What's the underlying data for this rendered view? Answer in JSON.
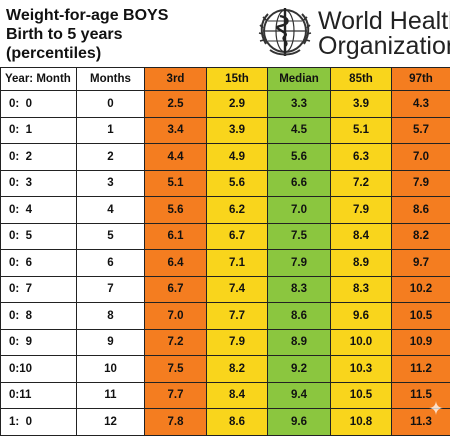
{
  "title": {
    "line1": "Weight-for-age  BOYS",
    "line2": "Birth to 5 years",
    "line3": "(percentiles)"
  },
  "logo": {
    "icon": "who-emblem-icon",
    "text_line1": "World Health",
    "text_line2": "Organization"
  },
  "colors": {
    "extreme": "#f47d20",
    "mid": "#f9d51c",
    "median": "#8bc63f"
  },
  "columns": [
    "Year: Month",
    "Months",
    "3rd",
    "15th",
    "Median",
    "85th",
    "97th"
  ],
  "rows": [
    {
      "age": "0:  0",
      "months": "0",
      "p3": "2.5",
      "p15": "2.9",
      "median": "3.3",
      "p85": "3.9",
      "p97": "4.3"
    },
    {
      "age": "0:  1",
      "months": "1",
      "p3": "3.4",
      "p15": "3.9",
      "median": "4.5",
      "p85": "5.1",
      "p97": "5.7"
    },
    {
      "age": "0:  2",
      "months": "2",
      "p3": "4.4",
      "p15": "4.9",
      "median": "5.6",
      "p85": "6.3",
      "p97": "7.0"
    },
    {
      "age": "0:  3",
      "months": "3",
      "p3": "5.1",
      "p15": "5.6",
      "median": "6.6",
      "p85": "7.2",
      "p97": "7.9"
    },
    {
      "age": "0:  4",
      "months": "4",
      "p3": "5.6",
      "p15": "6.2",
      "median": "7.0",
      "p85": "7.9",
      "p97": "8.6"
    },
    {
      "age": "0:  5",
      "months": "5",
      "p3": "6.1",
      "p15": "6.7",
      "median": "7.5",
      "p85": "8.4",
      "p97": "8.2"
    },
    {
      "age": "0:  6",
      "months": "6",
      "p3": "6.4",
      "p15": "7.1",
      "median": "7.9",
      "p85": "8.9",
      "p97": "9.7"
    },
    {
      "age": "0:  7",
      "months": "7",
      "p3": "6.7",
      "p15": "7.4",
      "median": "8.3",
      "p85": "8.3",
      "p97": "10.2"
    },
    {
      "age": "0:  8",
      "months": "8",
      "p3": "7.0",
      "p15": "7.7",
      "median": "8.6",
      "p85": "9.6",
      "p97": "10.5"
    },
    {
      "age": "0:  9",
      "months": "9",
      "p3": "7.2",
      "p15": "7.9",
      "median": "8.9",
      "p85": "10.0",
      "p97": "10.9"
    },
    {
      "age": "0:10",
      "months": "10",
      "p3": "7.5",
      "p15": "8.2",
      "median": "9.2",
      "p85": "10.3",
      "p97": "11.2"
    },
    {
      "age": "0:11",
      "months": "11",
      "p3": "7.7",
      "p15": "8.4",
      "median": "9.4",
      "p85": "10.5",
      "p97": "11.5"
    },
    {
      "age": "1:  0",
      "months": "12",
      "p3": "7.8",
      "p15": "8.6",
      "median": "9.6",
      "p85": "10.8",
      "p97": "11.3"
    }
  ],
  "watermark_icon": "sparkle-icon"
}
